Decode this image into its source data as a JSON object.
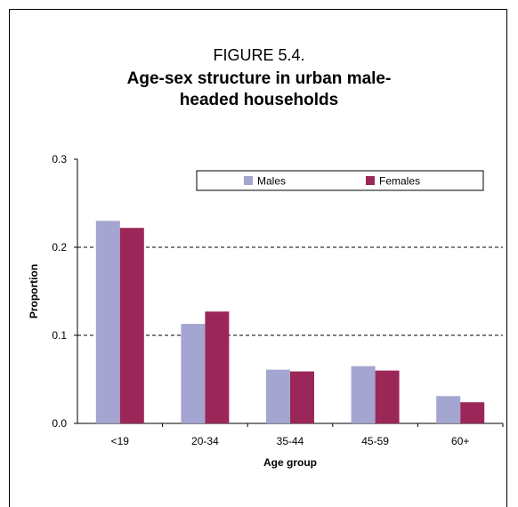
{
  "figure": {
    "label": "FIGURE 5.4.",
    "title": "Age-sex structure in urban male-headed households"
  },
  "chart_data": {
    "type": "bar",
    "categories": [
      "<19",
      "20-34",
      "35-44",
      "45-59",
      "60+"
    ],
    "series": [
      {
        "name": "Males",
        "color": "#a5a5d1",
        "values": [
          0.23,
          0.113,
          0.061,
          0.065,
          0.031
        ]
      },
      {
        "name": "Females",
        "color": "#9b2758",
        "values": [
          0.222,
          0.127,
          0.059,
          0.06,
          0.024
        ]
      }
    ],
    "xlabel": "Age group",
    "ylabel": "Proportion",
    "ylim": [
      0,
      0.3
    ],
    "yticks": [
      "0.0",
      "0.1",
      "0.2",
      "0.3"
    ],
    "grid": "dashed horizontal",
    "legend": "top-right"
  }
}
